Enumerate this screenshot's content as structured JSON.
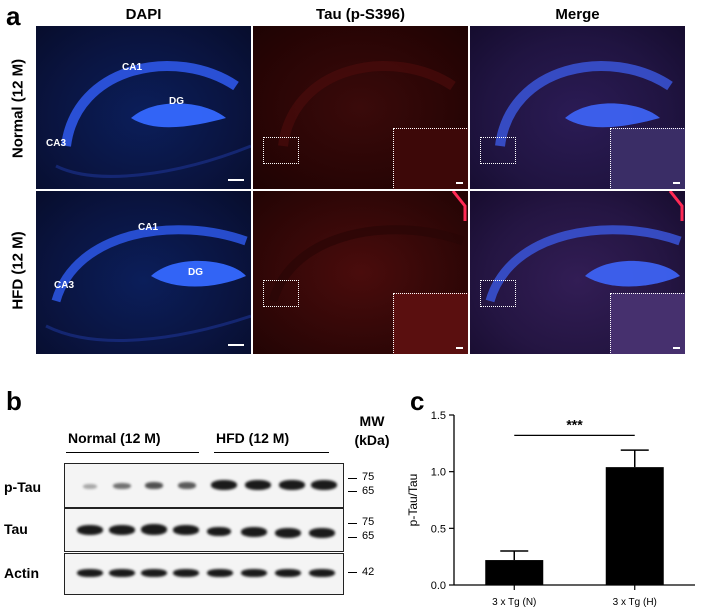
{
  "panel_a": {
    "letter": "a",
    "columns": [
      "DAPI",
      "Tau (p-S396)",
      "Merge"
    ],
    "rows": [
      "Normal (12 M)",
      "HFD (12 M)"
    ],
    "regions": {
      "ca1": "CA1",
      "ca3": "CA3",
      "dg": "DG"
    }
  },
  "panel_b": {
    "letter": "b",
    "group_normal": "Normal (12 M)",
    "group_hfd": "HFD (12 M)",
    "mw_header": [
      "MW",
      "(kDa)"
    ],
    "rows": [
      {
        "name": "p-Tau",
        "markers": [
          "75",
          "65"
        ]
      },
      {
        "name": "Tau",
        "markers": [
          "75",
          "65"
        ]
      },
      {
        "name": "Actin",
        "markers": [
          "42"
        ]
      }
    ]
  },
  "panel_c": {
    "letter": "c",
    "significance": "***",
    "chart_data": {
      "type": "bar",
      "categories": [
        "3 x Tg (N)",
        "3 x Tg (H)"
      ],
      "values": [
        0.22,
        1.04
      ],
      "errors": [
        0.08,
        0.15
      ],
      "ylabel": "p-Tau/Tau",
      "xlabel": "",
      "ylim": [
        0,
        1.5
      ],
      "yticks": [
        0.0,
        0.5,
        1.0,
        1.5
      ],
      "ytick_labels": [
        "0.0",
        "0.5",
        "1.0",
        "1.5"
      ],
      "bar_color": "#000000",
      "grid": false
    }
  }
}
